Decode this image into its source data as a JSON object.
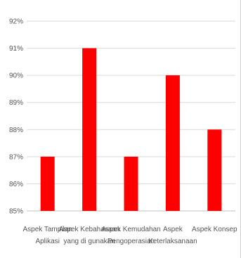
{
  "chart_data": {
    "type": "bar",
    "categories": [
      [
        "Aspek Tampilan",
        "Aplikasi"
      ],
      [
        "Aspek Kebahasaan",
        "yang di gunakan"
      ],
      [
        "Aspek Kemudahan",
        "Pengoperasian"
      ],
      [
        "Aspek",
        "Keterlaksanaan"
      ],
      [
        "Aspek Konsep"
      ]
    ],
    "values": [
      87,
      91,
      87,
      90,
      88
    ],
    "ylim": [
      85,
      92
    ],
    "yticks": [
      "85%",
      "86%",
      "87%",
      "88%",
      "89%",
      "90%",
      "91%",
      "92%"
    ],
    "grid": true,
    "legend": "none",
    "title": "",
    "xlabel": "",
    "ylabel": "",
    "colors": {
      "bar": "#ff0000",
      "grid": "#d9d9d9",
      "axis": "#bfbfbf",
      "text": "#555555"
    }
  }
}
